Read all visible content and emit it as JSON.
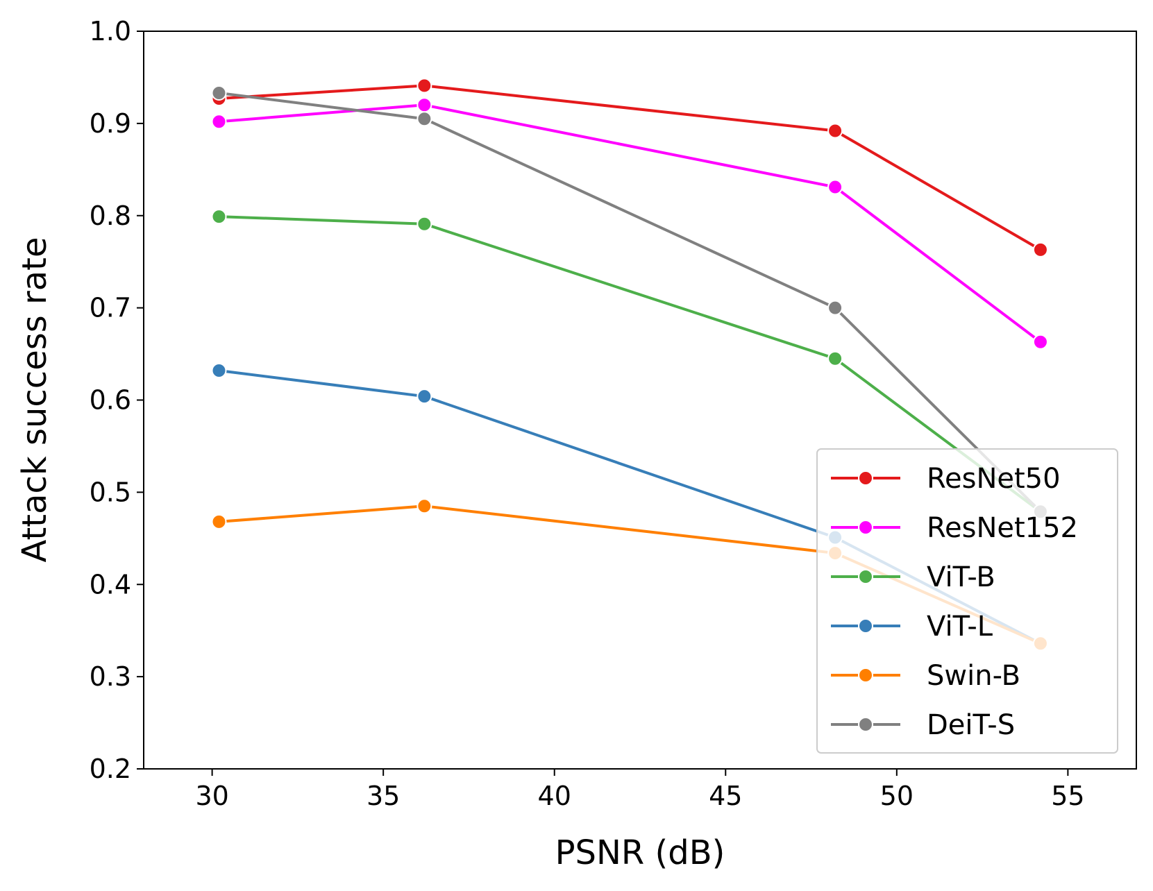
{
  "chart_data": {
    "type": "line",
    "title": "",
    "xlabel": "PSNR (dB)",
    "ylabel": "Attack success rate",
    "xlim": [
      28,
      57
    ],
    "ylim": [
      0.2,
      1.0
    ],
    "xticks": [
      30,
      35,
      40,
      45,
      50,
      55
    ],
    "xtick_labels": [
      "30",
      "35",
      "40",
      "45",
      "50",
      "55"
    ],
    "yticks": [
      0.2,
      0.3,
      0.4,
      0.5,
      0.6,
      0.7,
      0.8,
      0.9,
      1.0
    ],
    "ytick_labels": [
      "0.2",
      "0.3",
      "0.4",
      "0.5",
      "0.6",
      "0.7",
      "0.8",
      "0.9",
      "1.0"
    ],
    "grid": false,
    "legend_position": "lower-right",
    "x": [
      30.2,
      36.2,
      48.2,
      54.2
    ],
    "series": [
      {
        "name": "ResNet50",
        "color": "#e41a1c",
        "values": [
          0.927,
          0.941,
          0.892,
          0.763
        ]
      },
      {
        "name": "ResNet152",
        "color": "#ff00ff",
        "values": [
          0.902,
          0.92,
          0.831,
          0.663
        ]
      },
      {
        "name": "ViT-B",
        "color": "#4daf4a",
        "values": [
          0.799,
          0.791,
          0.645,
          0.479
        ]
      },
      {
        "name": "ViT-L",
        "color": "#377eb8",
        "values": [
          0.632,
          0.604,
          0.451,
          0.336
        ]
      },
      {
        "name": "Swin-B",
        "color": "#ff7f00",
        "values": [
          0.468,
          0.485,
          0.434,
          0.336
        ]
      },
      {
        "name": "DeiT-S",
        "color": "#808080",
        "values": [
          0.933,
          0.905,
          0.7,
          0.479
        ]
      }
    ]
  }
}
